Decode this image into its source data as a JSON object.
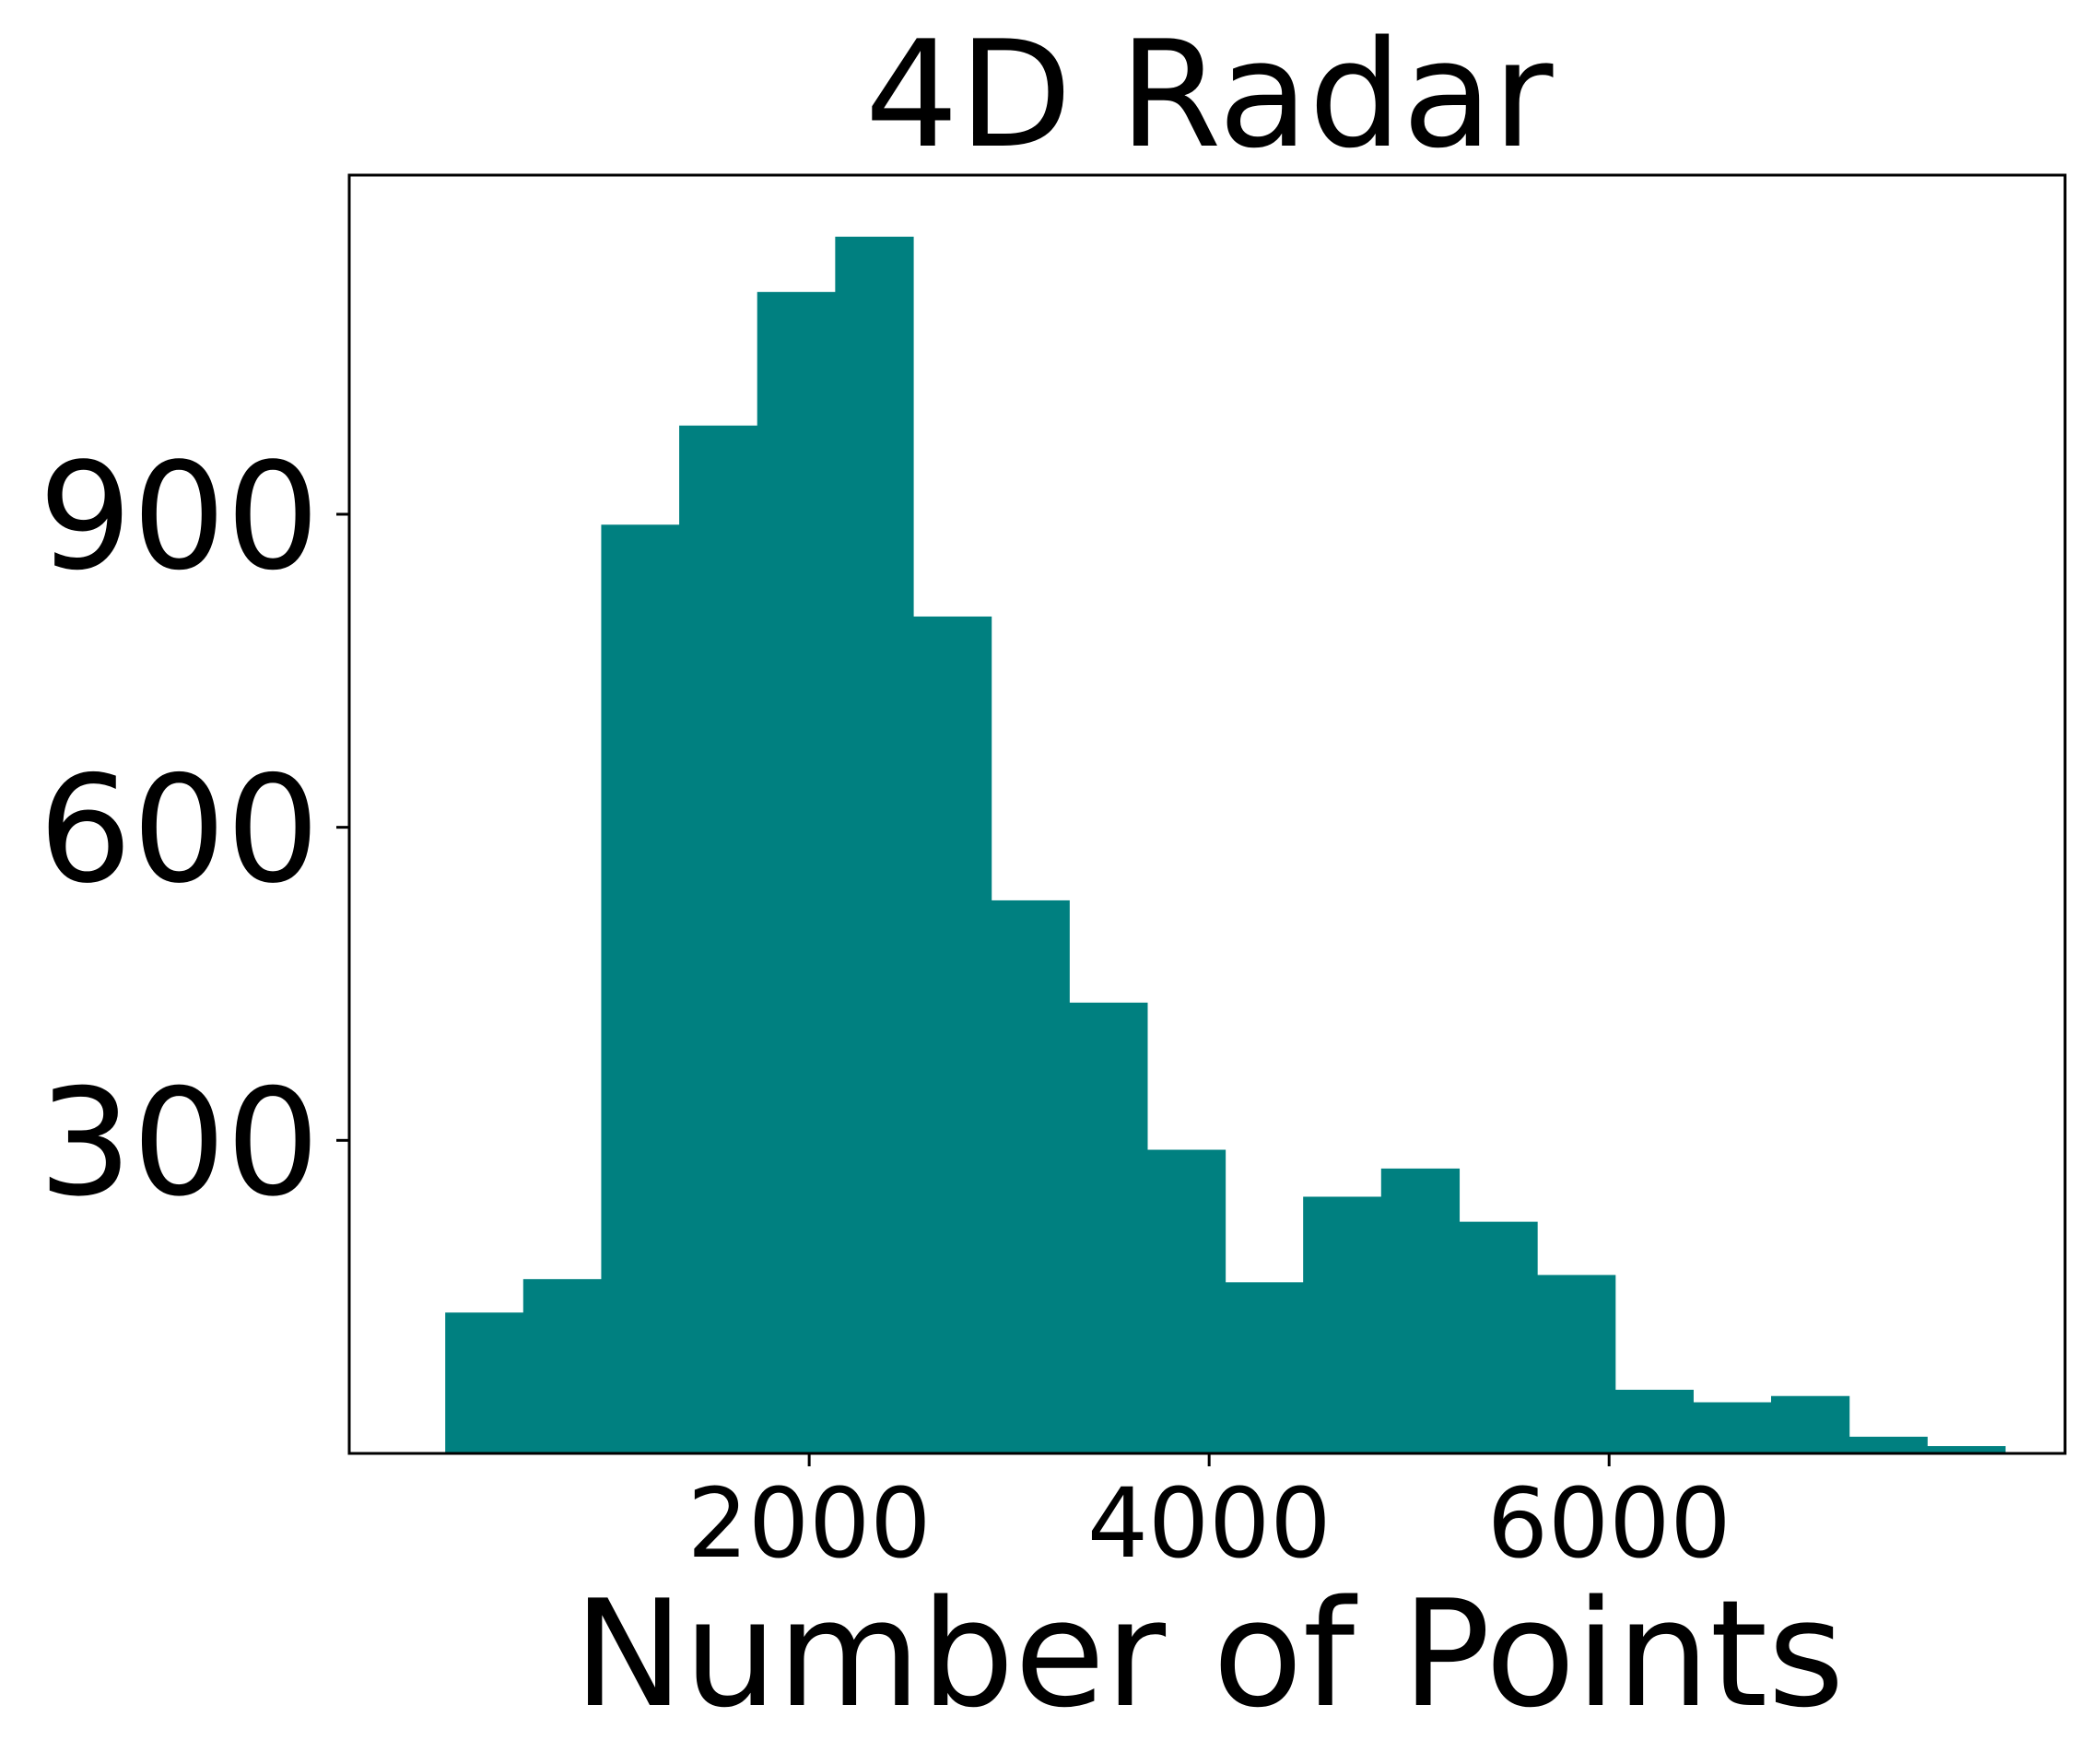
{
  "chart_data": {
    "type": "bar",
    "title": "4D Radar",
    "xlabel": "Number of Points",
    "ylabel": "",
    "color": "#008080",
    "bin_edges": [
      180,
      570,
      960,
      1350,
      1740,
      2130,
      2520,
      2910,
      3300,
      3690,
      4080,
      4470,
      4860,
      5250,
      5640,
      6030,
      6420,
      6810,
      7200,
      7590,
      7980
    ],
    "values": [
      135,
      167,
      890,
      985,
      1113,
      1166,
      802,
      530,
      432,
      291,
      164,
      246,
      273,
      222,
      171,
      61,
      49,
      55,
      16,
      7
    ],
    "xlim": [
      -300,
      8280
    ],
    "ylim": [
      0,
      1225
    ],
    "xticks": [
      2000,
      4000,
      6000
    ],
    "yticks": [
      300,
      600,
      900
    ],
    "grid": false,
    "legend": "none"
  }
}
